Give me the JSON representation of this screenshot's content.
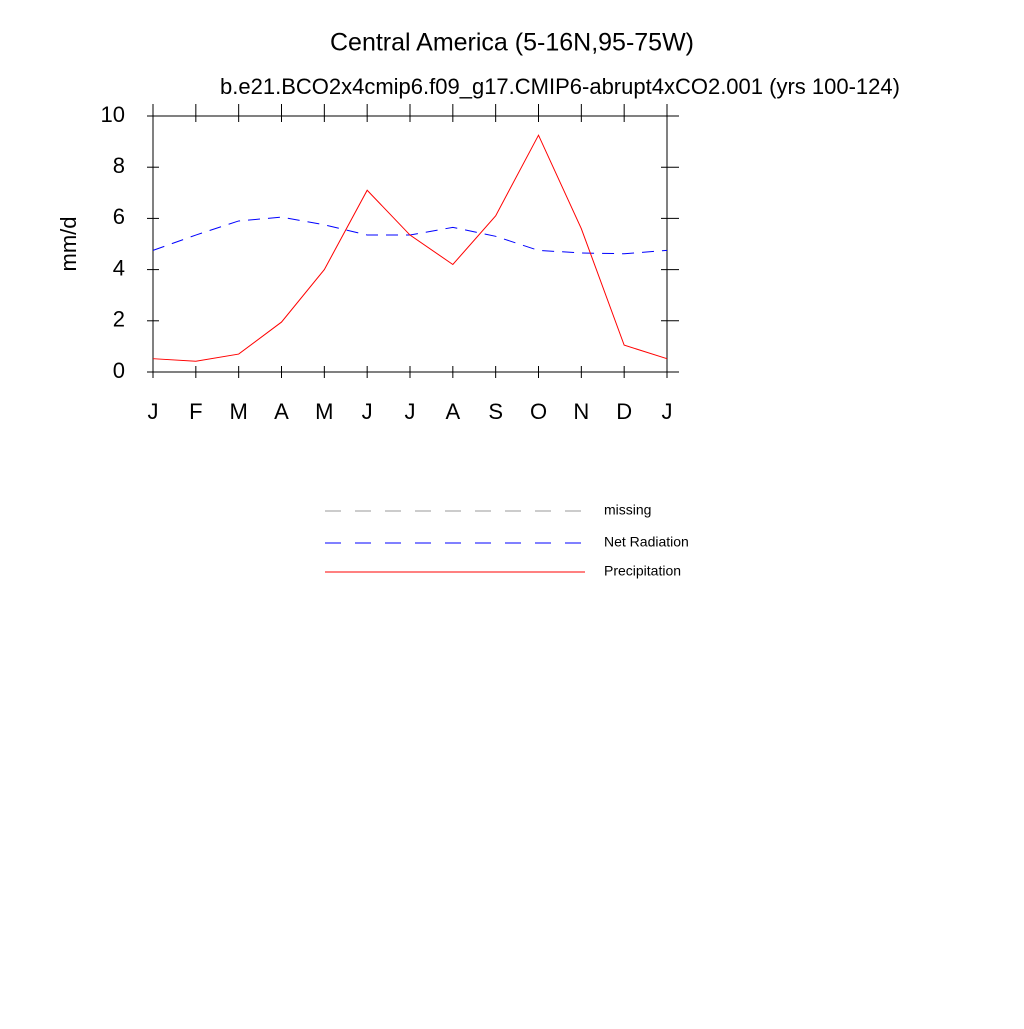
{
  "chart_data": {
    "type": "line",
    "title": "Central America (5-16N,95-75W)",
    "subtitle": "b.e21.BCO2x4cmip6.f09_g17.CMIP6-abrupt4xCO2.001 (yrs 100-124)",
    "y_label": "mm/d",
    "categories": [
      "J",
      "F",
      "M",
      "A",
      "M",
      "J",
      "J",
      "A",
      "S",
      "O",
      "N",
      "D",
      "J"
    ],
    "ylim": [
      0,
      10
    ],
    "yticks": [
      0,
      2,
      4,
      6,
      8,
      10
    ],
    "series": [
      {
        "name": "missing",
        "color": "#999999",
        "style": "dashed",
        "values": [
          null,
          null,
          null,
          null,
          null,
          null,
          null,
          null,
          null,
          null,
          null,
          null,
          null
        ]
      },
      {
        "name": "Net Radiation",
        "color": "#0000ff",
        "style": "dashed",
        "values": [
          4.75,
          5.35,
          5.9,
          6.05,
          5.75,
          5.35,
          5.35,
          5.65,
          5.3,
          4.75,
          4.65,
          4.62,
          4.75
        ]
      },
      {
        "name": "Precipitation",
        "color": "#ff0000",
        "style": "solid",
        "values": [
          0.52,
          0.42,
          0.7,
          1.95,
          4.0,
          7.1,
          5.35,
          4.2,
          6.1,
          9.25,
          5.6,
          1.05,
          0.52
        ]
      }
    ]
  }
}
